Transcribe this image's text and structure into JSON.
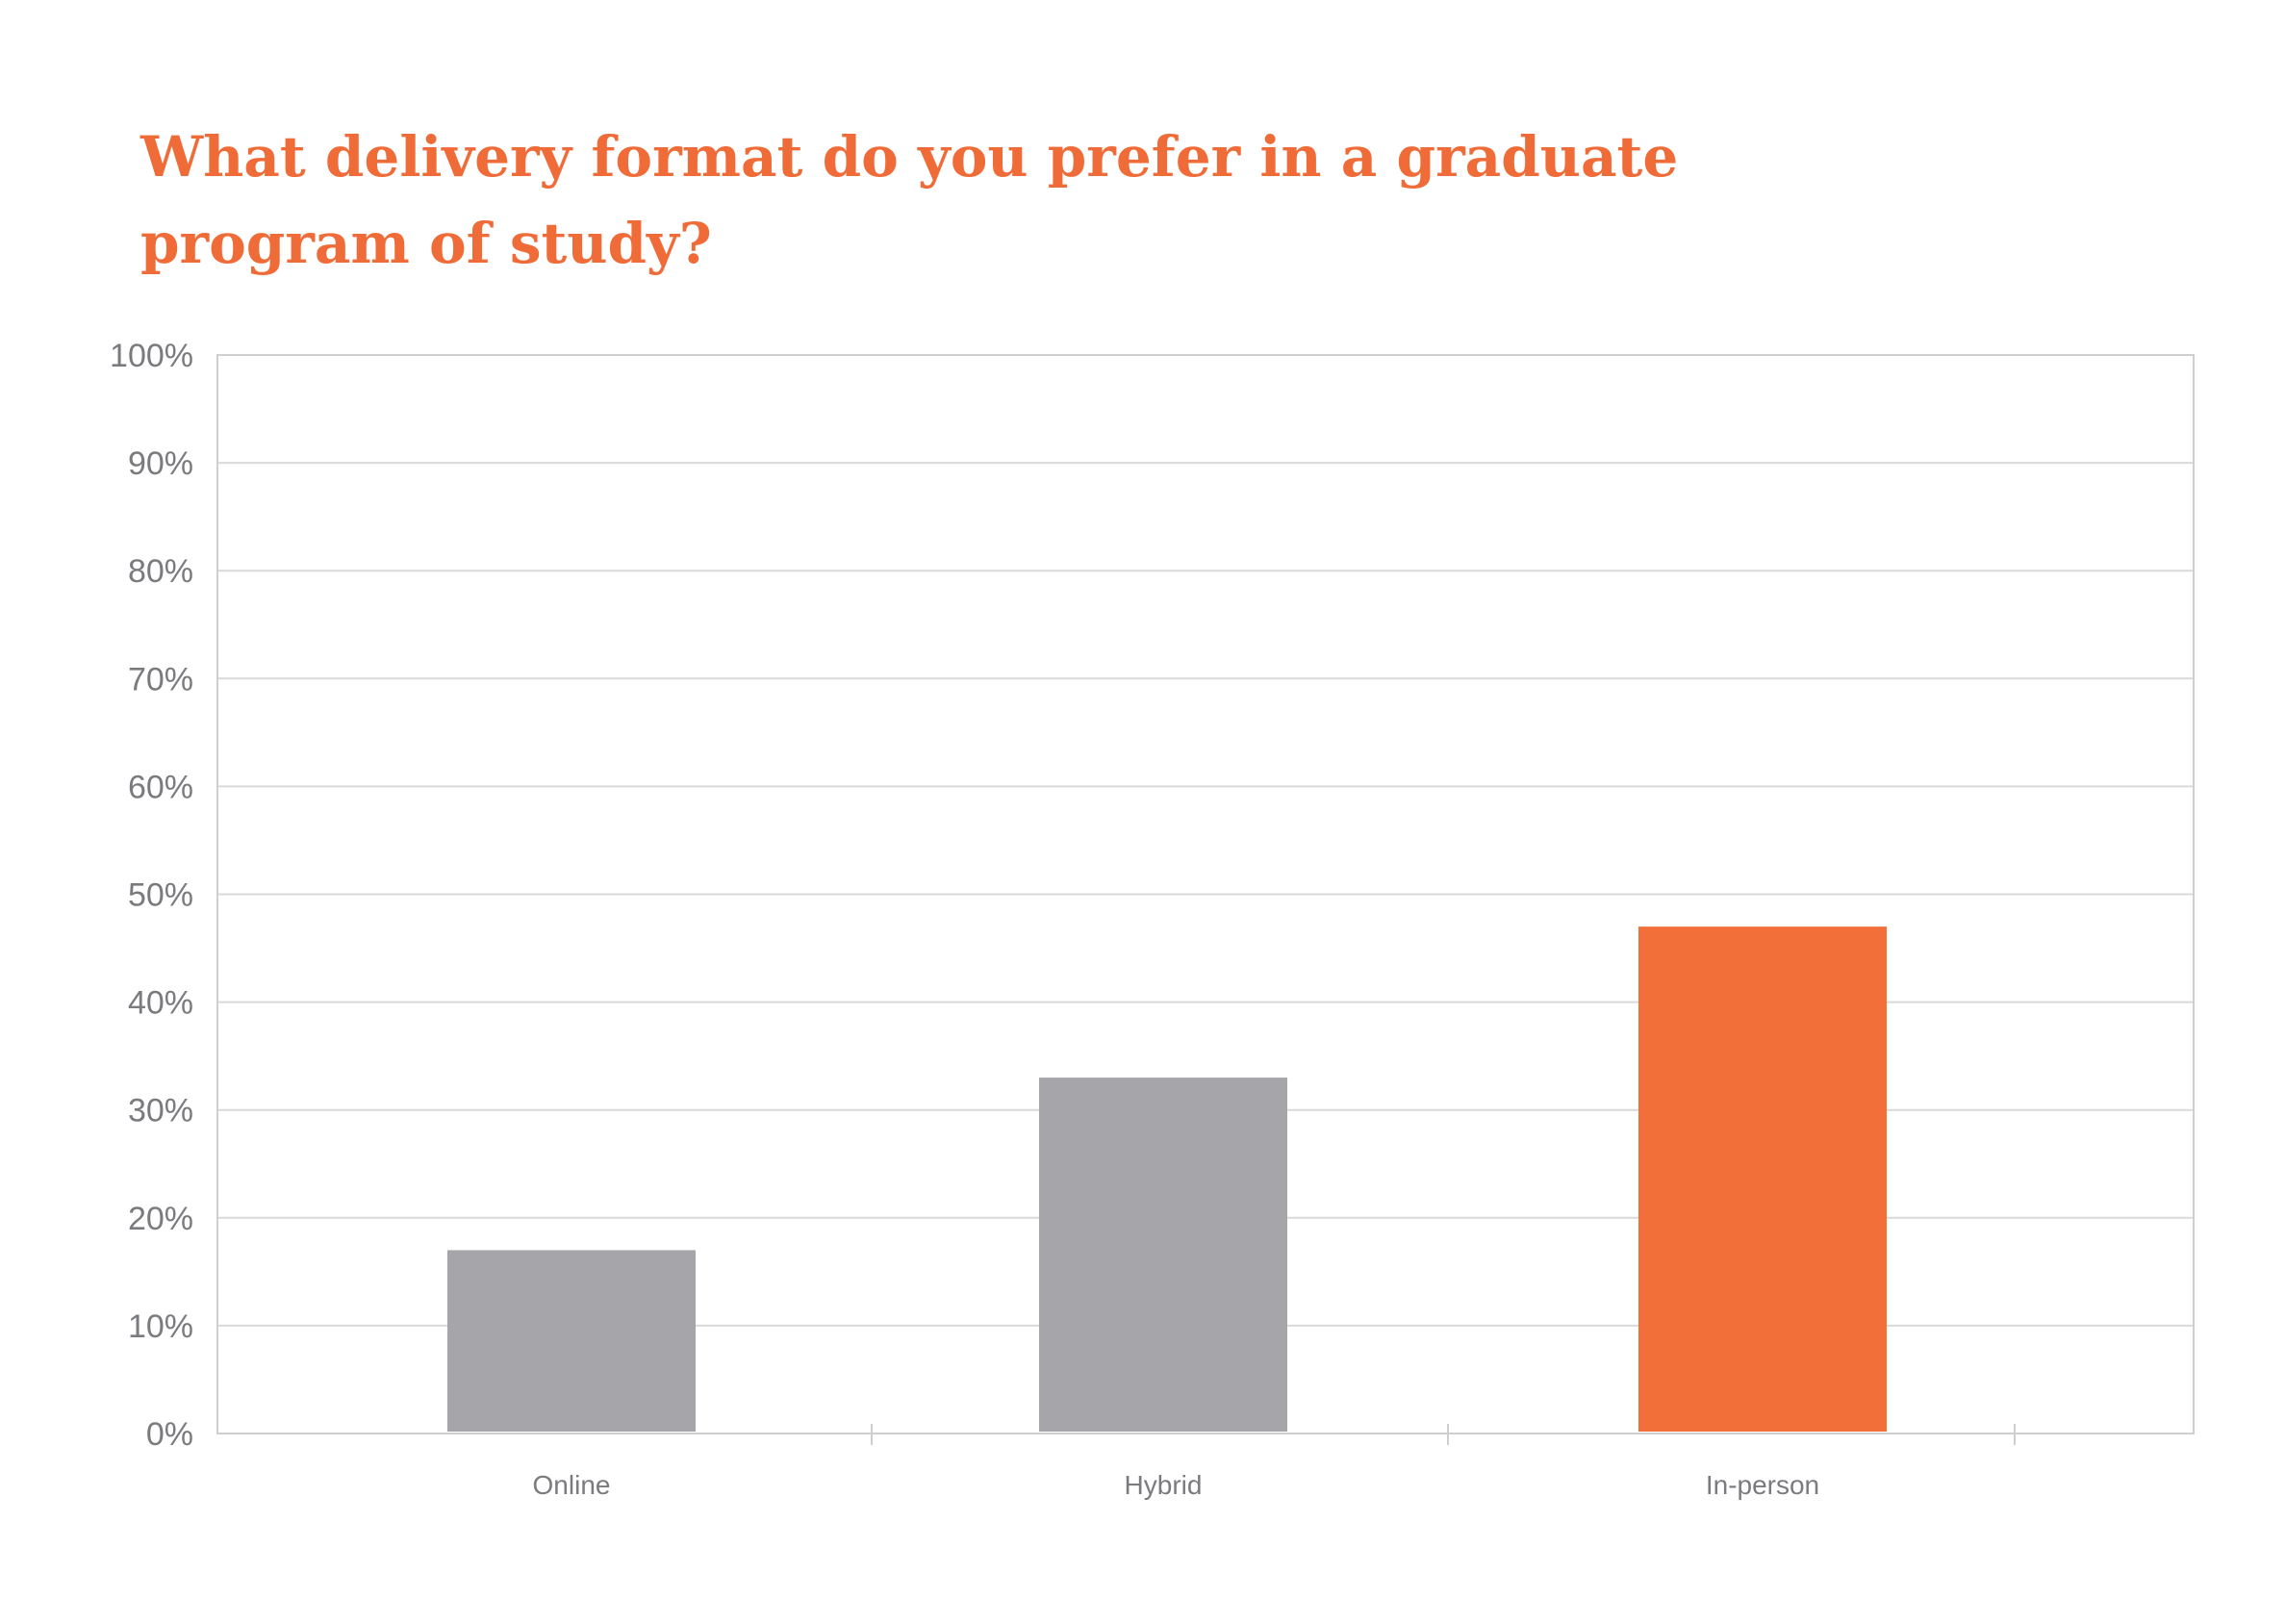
{
  "chart_data": {
    "type": "bar",
    "title": "What delivery format do you prefer in a graduate program of study?",
    "xlabel": "",
    "ylabel": "",
    "categories": [
      "Online",
      "Hybrid",
      "In-person"
    ],
    "values": [
      17,
      33,
      47
    ],
    "ylim": [
      0,
      100
    ],
    "yticks": [
      0,
      10,
      20,
      30,
      40,
      50,
      60,
      70,
      80,
      90,
      100
    ],
    "ytick_labels": [
      "0%",
      "10%",
      "20%",
      "30%",
      "40%",
      "50%",
      "60%",
      "70%",
      "80%",
      "90%",
      "100%"
    ],
    "bar_colors": [
      "#a6a5a9",
      "#a6a5a9",
      "#f26f3a"
    ],
    "grid": true,
    "legend": "none"
  },
  "colors": {
    "title": "#ef6c39",
    "tick_text": "#7b7b7f",
    "gridline": "#d9d9d9",
    "frame": "#cfcfcf"
  }
}
